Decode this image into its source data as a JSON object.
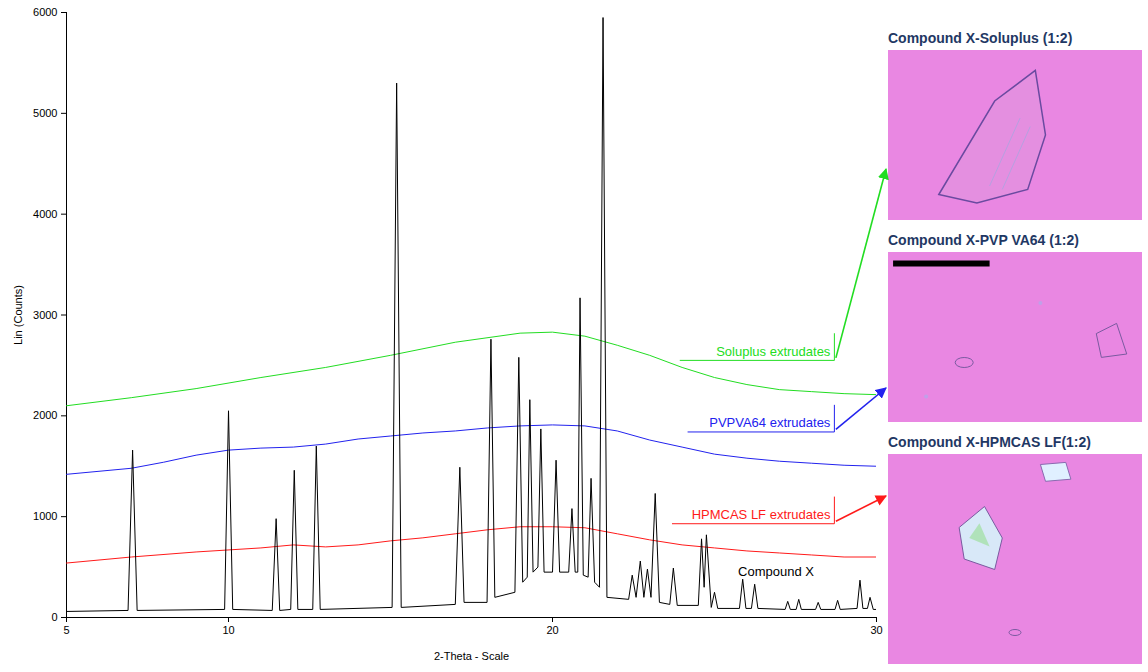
{
  "chart_data": {
    "type": "line",
    "xlabel": "2-Theta - Scale",
    "ylabel": "Lin (Counts)",
    "xlim": [
      5,
      30
    ],
    "xticks": [
      5,
      10,
      20,
      30
    ],
    "ylim": [
      0,
      6000
    ],
    "yticks": [
      0,
      1000,
      2000,
      3000,
      4000,
      5000,
      6000
    ],
    "series": [
      {
        "name": "Soluplus extrudates",
        "color": "#22dd22",
        "x": [
          5,
          7,
          9,
          11,
          13,
          15,
          17,
          19,
          20,
          21,
          22,
          23,
          24,
          25,
          26,
          27,
          28,
          29,
          30
        ],
        "values": [
          2100,
          2180,
          2270,
          2380,
          2480,
          2600,
          2730,
          2820,
          2830,
          2790,
          2700,
          2600,
          2480,
          2380,
          2310,
          2260,
          2240,
          2220,
          2210
        ]
      },
      {
        "name": "PVPVA64 extrudates",
        "color": "#2222ee",
        "x": [
          5,
          7,
          8,
          9,
          10,
          11,
          12,
          13,
          14,
          15,
          16,
          17,
          18,
          19,
          20,
          21,
          22,
          23,
          24,
          25,
          26,
          27,
          28,
          29,
          30
        ],
        "values": [
          1420,
          1480,
          1540,
          1610,
          1660,
          1680,
          1690,
          1720,
          1770,
          1800,
          1830,
          1850,
          1880,
          1900,
          1910,
          1900,
          1850,
          1760,
          1690,
          1620,
          1580,
          1550,
          1530,
          1510,
          1500
        ]
      },
      {
        "name": "HPMCAS LF extrudates",
        "color": "#ff1a1a",
        "x": [
          5,
          7,
          9,
          11,
          12,
          13,
          14,
          15,
          16,
          17,
          18,
          19,
          20,
          21,
          22,
          23,
          24,
          25,
          26,
          27,
          28,
          29,
          30
        ],
        "values": [
          540,
          600,
          650,
          690,
          720,
          700,
          720,
          760,
          790,
          830,
          870,
          900,
          900,
          890,
          830,
          770,
          720,
          690,
          660,
          640,
          620,
          600,
          600
        ]
      },
      {
        "name": "Compound X",
        "color": "#000000",
        "x": [
          5.0,
          6.9,
          7.04,
          7.18,
          9.88,
          10.0,
          10.13,
          11.35,
          11.47,
          11.58,
          11.92,
          12.03,
          12.14,
          12.6,
          12.71,
          12.83,
          15.05,
          15.19,
          15.33,
          17.0,
          17.14,
          17.27,
          17.98,
          18.1,
          18.22,
          18.84,
          18.96,
          19.08,
          19.22,
          19.3,
          19.4,
          19.55,
          19.64,
          19.74,
          20.0,
          20.11,
          20.22,
          20.5,
          20.6,
          20.7,
          20.78,
          20.85,
          20.95,
          21.1,
          21.19,
          21.3,
          21.45,
          21.56,
          21.68,
          22.35,
          22.46,
          22.58,
          22.71,
          22.82,
          22.93,
          23.04,
          23.17,
          23.3,
          23.62,
          23.73,
          23.85,
          24.5,
          24.6,
          24.68,
          24.75,
          24.9,
          25.0,
          25.1,
          25.77,
          25.87,
          25.97,
          26.14,
          26.24,
          26.34,
          27.18,
          27.26,
          27.34,
          27.52,
          27.6,
          27.68,
          28.12,
          28.2,
          28.28,
          28.72,
          28.8,
          28.88,
          29.4,
          29.49,
          29.58,
          29.72,
          29.8,
          29.9,
          30.0
        ],
        "values": [
          60,
          70,
          1660,
          70,
          80,
          2050,
          80,
          70,
          980,
          70,
          80,
          1460,
          80,
          80,
          1700,
          80,
          100,
          5300,
          100,
          130,
          1490,
          150,
          150,
          2760,
          200,
          250,
          2580,
          350,
          400,
          2160,
          450,
          500,
          1870,
          450,
          450,
          1560,
          450,
          450,
          1080,
          450,
          450,
          3170,
          420,
          400,
          1380,
          350,
          300,
          5950,
          200,
          180,
          420,
          200,
          560,
          200,
          480,
          200,
          1230,
          150,
          130,
          490,
          120,
          120,
          780,
          300,
          820,
          100,
          250,
          90,
          90,
          380,
          90,
          90,
          330,
          90,
          80,
          160,
          80,
          80,
          180,
          80,
          80,
          150,
          80,
          80,
          170,
          80,
          90,
          370,
          90,
          90,
          200,
          80,
          80
        ]
      }
    ]
  },
  "micrographs": [
    {
      "title": "Compound X-Soluplus (1:2)",
      "arrow_from": "Soluplus extrudates"
    },
    {
      "title": "Compound X-PVP VA64 (1:2)",
      "arrow_from": "PVPVA64 extrudates"
    },
    {
      "title": "Compound X-HPMCAS LF(1:2)",
      "arrow_from": "HPMCAS LF extrudates"
    }
  ]
}
